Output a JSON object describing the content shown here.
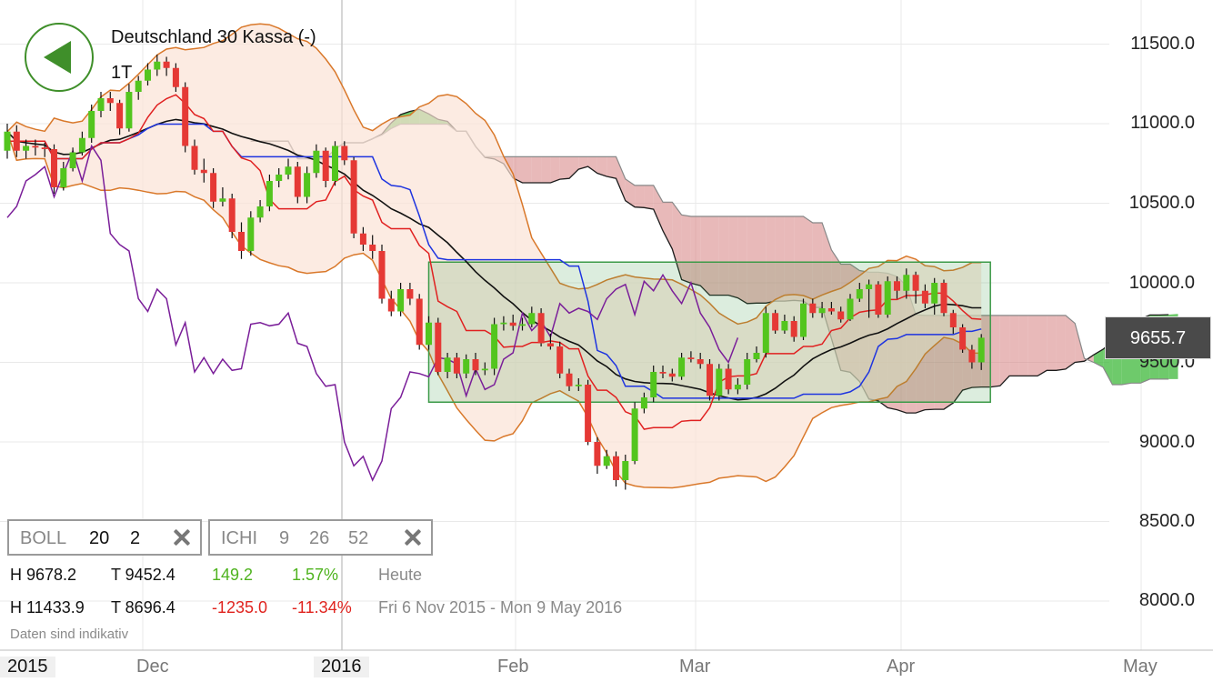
{
  "header": {
    "title": "Deutschland 30 Kassa (-)",
    "period": "1T"
  },
  "price_tag": "9655.7",
  "y_axis_labels": [
    "11500.0",
    "11000.0",
    "10500.0",
    "10000.0",
    "9500.0",
    "9000.0",
    "8500.0",
    "8000.0"
  ],
  "x_axis_labels": [
    "2015",
    "Dec",
    "2016",
    "Feb",
    "Mar",
    "Apr",
    "May"
  ],
  "indicators": {
    "boll": {
      "name": "BOLL",
      "p1": "20",
      "p2": "2"
    },
    "ichi": {
      "name": "ICHI",
      "p1": "9",
      "p2": "26",
      "p3": "52"
    }
  },
  "stats": {
    "today": {
      "high": "H 9678.2",
      "low": "T 9452.4",
      "change": "149.2",
      "pct": "1.57%",
      "label": "Heute"
    },
    "range": {
      "high": "H 11433.9",
      "low": "T 8696.4",
      "change": "-1235.0",
      "pct": "-11.34%",
      "label": "Fri 6 Nov 2015 - Mon 9 May 2016"
    }
  },
  "disclaimer": "Daten sind indikativ",
  "colors": {
    "up": "#53c51e",
    "down": "#e53935",
    "boll_band": "#d9782a",
    "boll_fill": "#fbe3d6",
    "kumo_bull": "#3db83a",
    "kumo_bear": "#d98a8a",
    "tenkan": "#e02020",
    "kijun": "#1e34e0",
    "chikou": "#7a1e99",
    "highlight": "#3c9a48"
  },
  "chart_data": {
    "type": "candlestick",
    "title": "Deutschland 30 Kassa (-)",
    "ylim": [
      7700,
      11900
    ],
    "x_ticks": [
      "2015",
      "Dec",
      "2016",
      "Feb",
      "Mar",
      "Apr",
      "May"
    ],
    "grid": true,
    "indicators": [
      "Bollinger Bands (20, 2)",
      "Ichimoku (9, 26, 52)"
    ],
    "highlight_box": {
      "from": "2016-01-14",
      "to": "2016-04-20",
      "low": 9250,
      "high": 10130
    },
    "dates": [
      "2015-11-06",
      "2015-11-09",
      "2015-11-10",
      "2015-11-11",
      "2015-11-12",
      "2015-11-13",
      "2015-11-16",
      "2015-11-17",
      "2015-11-18",
      "2015-11-19",
      "2015-11-20",
      "2015-11-23",
      "2015-11-24",
      "2015-11-25",
      "2015-11-26",
      "2015-11-27",
      "2015-11-30",
      "2015-12-01",
      "2015-12-02",
      "2015-12-03",
      "2015-12-04",
      "2015-12-07",
      "2015-12-08",
      "2015-12-09",
      "2015-12-10",
      "2015-12-11",
      "2015-12-14",
      "2015-12-15",
      "2015-12-16",
      "2015-12-17",
      "2015-12-18",
      "2015-12-21",
      "2015-12-22",
      "2015-12-23",
      "2015-12-28",
      "2015-12-29",
      "2015-12-30",
      "2016-01-04",
      "2016-01-05",
      "2016-01-06",
      "2016-01-07",
      "2016-01-08",
      "2016-01-11",
      "2016-01-12",
      "2016-01-13",
      "2016-01-14",
      "2016-01-15",
      "2016-01-18",
      "2016-01-19",
      "2016-01-20",
      "2016-01-21",
      "2016-01-22",
      "2016-01-25",
      "2016-01-26",
      "2016-01-27",
      "2016-01-28",
      "2016-01-29",
      "2016-02-01",
      "2016-02-02",
      "2016-02-03",
      "2016-02-04",
      "2016-02-05",
      "2016-02-08",
      "2016-02-09",
      "2016-02-10",
      "2016-02-11",
      "2016-02-12",
      "2016-02-15",
      "2016-02-16",
      "2016-02-17",
      "2016-02-18",
      "2016-02-19",
      "2016-02-22",
      "2016-02-23",
      "2016-02-24",
      "2016-02-25",
      "2016-02-26",
      "2016-02-29",
      "2016-03-01",
      "2016-03-02",
      "2016-03-03",
      "2016-03-04",
      "2016-03-07",
      "2016-03-08",
      "2016-03-09",
      "2016-03-10",
      "2016-03-11",
      "2016-03-14",
      "2016-03-15",
      "2016-03-16",
      "2016-03-17",
      "2016-03-18",
      "2016-03-21",
      "2016-03-22",
      "2016-03-23",
      "2016-03-24",
      "2016-03-29",
      "2016-03-30",
      "2016-03-31",
      "2016-04-01",
      "2016-04-04",
      "2016-04-05",
      "2016-04-06",
      "2016-04-07",
      "2016-04-08"
    ],
    "open": [
      10830,
      10950,
      10830,
      10860,
      10850,
      10840,
      10600,
      10720,
      10820,
      10910,
      11080,
      11160,
      11130,
      10970,
      11200,
      11270,
      11340,
      11390,
      11350,
      11230,
      10860,
      10710,
      10690,
      10510,
      10530,
      10320,
      10200,
      10410,
      10480,
      10640,
      10680,
      10730,
      10540,
      10690,
      10830,
      10640,
      10860,
      10770,
      10310,
      10240,
      10200,
      9900,
      9820,
      9960,
      9900,
      9610,
      9750,
      9440,
      9530,
      9430,
      9520,
      9450,
      9460,
      9740,
      9750,
      9730,
      9740,
      9810,
      9620,
      9600,
      9430,
      9350,
      9360,
      9000,
      8850,
      8910,
      8760,
      8880,
      9210,
      9280,
      9440,
      9430,
      9410,
      9530,
      9520,
      9490,
      9290,
      9460,
      9330,
      9360,
      9520,
      9560,
      9810,
      9700,
      9760,
      9660,
      9870,
      9810,
      9840,
      9820,
      9770,
      9900,
      9960,
      9990,
      9800,
      10010,
      9950,
      10050,
      9950,
      9870,
      10000,
      9810,
      9720,
      9580,
      9500
    ],
    "close": [
      10950,
      10830,
      10860,
      10850,
      10840,
      10600,
      10720,
      10820,
      10910,
      11080,
      11160,
      11130,
      10970,
      11200,
      11270,
      11340,
      11390,
      11350,
      11230,
      10860,
      10710,
      10690,
      10510,
      10530,
      10320,
      10200,
      10410,
      10480,
      10640,
      10680,
      10730,
      10540,
      10690,
      10830,
      10640,
      10860,
      10770,
      10310,
      10240,
      10200,
      9900,
      9820,
      9960,
      9900,
      9610,
      9750,
      9440,
      9530,
      9430,
      9520,
      9450,
      9460,
      9740,
      9750,
      9730,
      9740,
      9810,
      9620,
      9600,
      9430,
      9350,
      9360,
      9000,
      8850,
      8910,
      8760,
      8880,
      9210,
      9280,
      9440,
      9430,
      9410,
      9530,
      9520,
      9490,
      9290,
      9460,
      9330,
      9360,
      9520,
      9560,
      9810,
      9700,
      9760,
      9660,
      9870,
      9810,
      9840,
      9820,
      9770,
      9900,
      9960,
      9990,
      9800,
      10010,
      9950,
      10050,
      9950,
      9870,
      10000,
      9810,
      9720,
      9580,
      9500,
      9655
    ],
    "high": [
      11000,
      10990,
      10900,
      10900,
      10880,
      10870,
      10760,
      10850,
      10950,
      11120,
      11200,
      11200,
      11150,
      11250,
      11300,
      11380,
      11434,
      11420,
      11380,
      11260,
      10900,
      10780,
      10720,
      10600,
      10560,
      10380,
      10450,
      10520,
      10680,
      10720,
      10780,
      10760,
      10730,
      10870,
      10850,
      10890,
      10890,
      10790,
      10350,
      10300,
      10240,
      9950,
      10000,
      10000,
      9930,
      9790,
      9780,
      9560,
      9560,
      9550,
      9560,
      9500,
      9780,
      9790,
      9800,
      9780,
      9850,
      9840,
      9680,
      9630,
      9460,
      9400,
      9390,
      9030,
      8950,
      8940,
      8920,
      9250,
      9310,
      9480,
      9480,
      9460,
      9560,
      9570,
      9560,
      9520,
      9490,
      9490,
      9400,
      9560,
      9600,
      9850,
      9830,
      9800,
      9790,
      9900,
      9900,
      9880,
      9880,
      9850,
      9930,
      10000,
      10020,
      10010,
      10040,
      10040,
      10090,
      10070,
      9990,
      10030,
      10020,
      9830,
      9740,
      9610,
      9678
    ],
    "low": [
      10780,
      10790,
      10780,
      10800,
      10790,
      10560,
      10580,
      10700,
      10800,
      10880,
      11040,
      11080,
      10930,
      10950,
      11150,
      11240,
      11300,
      11300,
      11200,
      10820,
      10680,
      10630,
      10470,
      10480,
      10280,
      10150,
      10170,
      10380,
      10450,
      10600,
      10650,
      10500,
      10500,
      10660,
      10600,
      10610,
      10740,
      10280,
      10200,
      10150,
      9870,
      9790,
      9790,
      9860,
      9580,
      9580,
      9420,
      9400,
      9400,
      9400,
      9420,
      9420,
      9420,
      9700,
      9700,
      9700,
      9720,
      9600,
      9580,
      9400,
      9320,
      9320,
      8980,
      8800,
      8830,
      8720,
      8700,
      8860,
      9180,
      9250,
      9400,
      9380,
      9390,
      9500,
      9460,
      9260,
      9260,
      9300,
      9300,
      9330,
      9500,
      9530,
      9680,
      9680,
      9630,
      9640,
      9780,
      9780,
      9800,
      9750,
      9760,
      9880,
      9780,
      9780,
      9780,
      9900,
      9900,
      9870,
      9840,
      9800,
      9790,
      9680,
      9560,
      9460,
      9452
    ]
  }
}
